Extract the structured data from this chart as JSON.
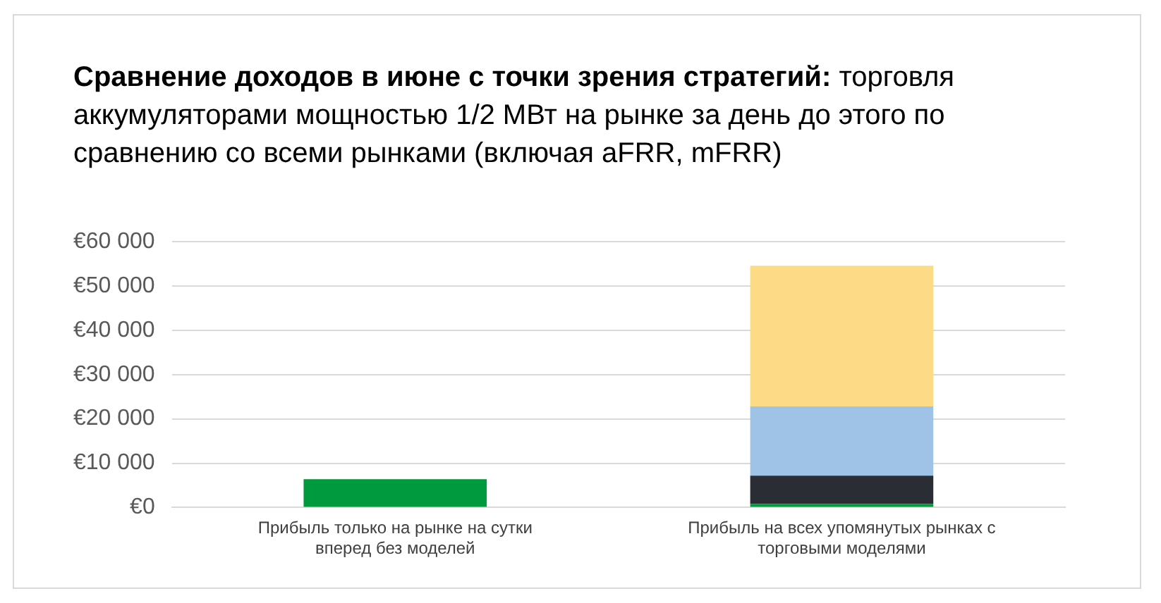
{
  "chart_data": {
    "type": "bar",
    "title": "Сравнение доходов в июне с точки зрения стратегий:",
    "subtitle": "торговля аккумуляторами мощностью 1/2 МВт на рынке за день до этого по сравнению со всеми рынками (включая aFRR, mFRR)",
    "categories": [
      "Прибыль только на рынке на сутки вперед без моделей",
      "Прибыль на всех упомянутых рынках с торговыми моделями"
    ],
    "series": [
      {
        "color": "#009a3e",
        "values": [
          6400,
          800
        ]
      },
      {
        "color": "#2a2d34",
        "values": [
          null,
          6400
        ]
      },
      {
        "color": "#9fc3e6",
        "values": [
          null,
          15600
        ]
      },
      {
        "color": "#fddb86",
        "values": [
          null,
          31800
        ]
      }
    ],
    "stacked": true,
    "ylim": [
      0,
      60000
    ],
    "yticks": [
      {
        "value": 0,
        "label": "€0"
      },
      {
        "value": 10000,
        "label": "€10 000"
      },
      {
        "value": 20000,
        "label": "€20 000"
      },
      {
        "value": 30000,
        "label": "€30 000"
      },
      {
        "value": 40000,
        "label": "€40 000"
      },
      {
        "value": 50000,
        "label": "€50 000"
      },
      {
        "value": 60000,
        "label": "€60 000"
      }
    ],
    "grid": "y",
    "legend": false
  }
}
